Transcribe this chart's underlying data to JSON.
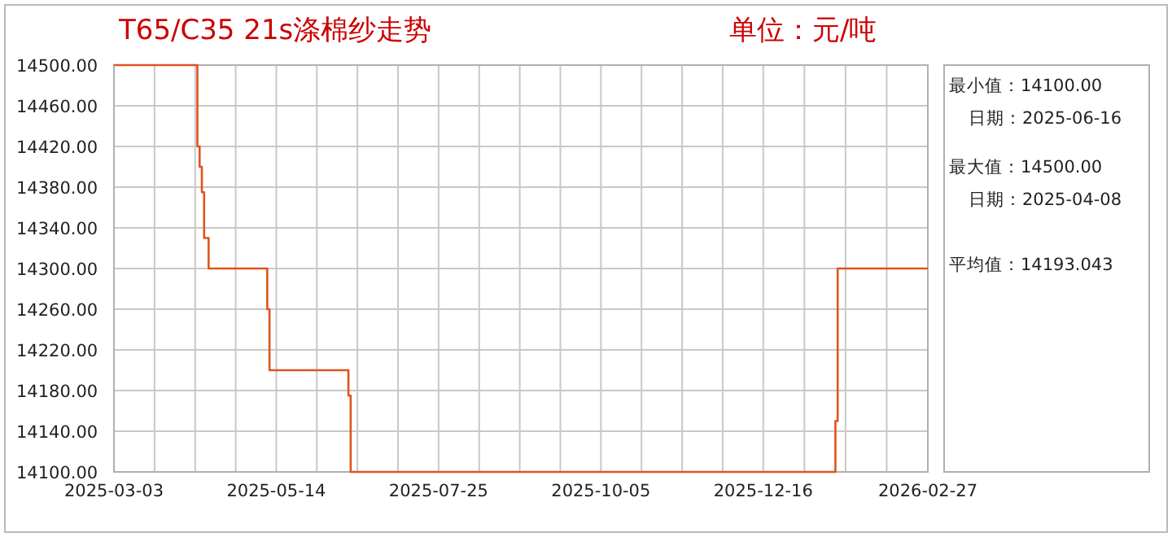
{
  "chart_data": {
    "type": "step",
    "title": "T65/C35 21s涤棉纱走势",
    "subtitle": "单位：元/吨",
    "x": [
      "2025-03-03",
      "2025-04-08",
      "2025-04-09",
      "2025-04-10",
      "2025-04-11",
      "2025-04-12",
      "2025-04-14",
      "2025-05-09",
      "2025-05-10",
      "2025-05-11",
      "2025-06-15",
      "2025-06-16",
      "2026-01-16",
      "2026-01-17",
      "2026-01-18",
      "2026-02-27"
    ],
    "series": [
      {
        "color": "#e0531f",
        "values": [
          14500,
          14500,
          14420,
          14400,
          14375,
          14330,
          14300,
          14300,
          14260,
          14200,
          14175,
          14100,
          14100,
          14150,
          14300,
          14300
        ]
      }
    ],
    "xlim": [
      "2025-03-03",
      "2026-02-27"
    ],
    "xticks": [
      {
        "value": "2025-03-03",
        "label": "2025-03-03"
      },
      {
        "value": "2025-05-14",
        "label": "2025-05-14"
      },
      {
        "value": "2025-07-25",
        "label": "2025-07-25"
      },
      {
        "value": "2025-10-05",
        "label": "2025-10-05"
      },
      {
        "value": "2025-12-16",
        "label": "2025-12-16"
      },
      {
        "value": "2026-02-27",
        "label": "2026-02-27"
      }
    ],
    "ylim": [
      14100,
      14500
    ],
    "yticks": [
      {
        "value": 14100,
        "label": "14100.00"
      },
      {
        "value": 14140,
        "label": "14140.00"
      },
      {
        "value": 14180,
        "label": "14180.00"
      },
      {
        "value": 14220,
        "label": "14220.00"
      },
      {
        "value": 14260,
        "label": "14260.00"
      },
      {
        "value": 14300,
        "label": "14300.00"
      },
      {
        "value": 14340,
        "label": "14340.00"
      },
      {
        "value": 14380,
        "label": "14380.00"
      },
      {
        "value": 14420,
        "label": "14420.00"
      },
      {
        "value": 14460,
        "label": "14460.00"
      },
      {
        "value": 14500,
        "label": "14500.00"
      }
    ],
    "grid": true,
    "annotations": [
      "最小值：14100.00",
      "日期：2025-06-16",
      "最大值：14500.00",
      "日期：2025-04-08",
      "平均值：14193.043"
    ]
  }
}
